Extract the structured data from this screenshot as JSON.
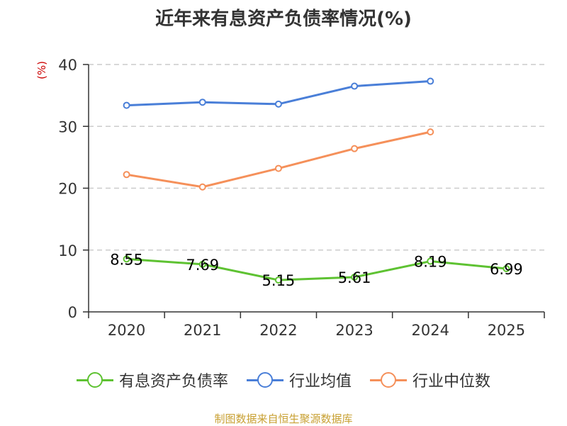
{
  "chart_data": {
    "type": "line",
    "title": "近年来有息资产负债率情况(%)",
    "ylabel": "(%)",
    "categories": [
      "2020",
      "2021",
      "2022",
      "2023",
      "2024",
      "2025"
    ],
    "ylim": [
      0,
      40
    ],
    "yticks": [
      "0",
      "10",
      "20",
      "30",
      "40"
    ],
    "grid": true,
    "legend_position": "bottom",
    "series": [
      {
        "name": "有息资产负债率",
        "color": "#5ec232",
        "values": [
          8.55,
          7.69,
          5.15,
          5.61,
          8.19,
          6.99
        ],
        "labels": [
          "8.55",
          "7.69",
          "5.15",
          "5.61",
          "8.19",
          "6.99"
        ]
      },
      {
        "name": "行业均值",
        "color": "#4a7fd8",
        "values": [
          33.4,
          33.9,
          33.6,
          36.5,
          37.3,
          null
        ]
      },
      {
        "name": "行业中位数",
        "color": "#f5905a",
        "values": [
          22.2,
          20.2,
          23.2,
          26.4,
          29.1,
          null
        ]
      }
    ]
  },
  "source": "制图数据来自恒生聚源数据库"
}
